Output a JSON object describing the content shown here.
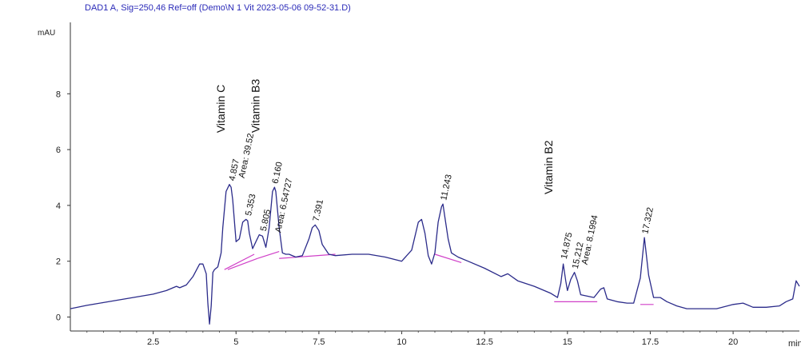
{
  "chart_data": {
    "type": "line",
    "title": "DAD1 A, Sig=250,46 Ref=off (Demo\\N 1 Vit 2023-05-06 09-52-31.D)",
    "ylabel": "mAU",
    "xlabel": "min",
    "xlim": [
      0,
      22
    ],
    "ylim": [
      -0.5,
      10.5
    ],
    "x_ticks": [
      "2.5",
      "5",
      "7.5",
      "10",
      "12.5",
      "15",
      "17.5",
      "20"
    ],
    "y_ticks": [
      "0",
      "2",
      "4",
      "6",
      "8"
    ],
    "colors": {
      "trace": "#2b2b8a",
      "baseline": "#d040c8",
      "header": "#2a2ab8"
    },
    "series": [
      {
        "x": [
          0,
          0.5,
          1,
          1.5,
          2,
          2.5,
          2.9,
          3.1,
          3.2,
          3.3,
          3.5,
          3.7,
          3.9,
          4.0,
          4.1,
          4.15,
          4.2,
          4.25,
          4.3,
          4.35,
          4.45,
          4.55,
          4.6,
          4.7,
          4.8,
          4.85,
          4.9,
          5.0,
          5.1,
          5.2,
          5.3,
          5.35,
          5.4,
          5.5,
          5.6,
          5.7,
          5.8,
          5.9,
          6.0,
          6.1,
          6.16,
          6.2,
          6.3,
          6.4,
          6.5,
          6.6,
          6.8,
          7.0,
          7.2,
          7.3,
          7.39,
          7.5,
          7.6,
          7.8,
          8.0,
          8.5,
          9.0,
          9.5,
          10.0,
          10.3,
          10.5,
          10.6,
          10.7,
          10.8,
          10.9,
          11.0,
          11.1,
          11.2,
          11.243,
          11.3,
          11.4,
          11.5,
          11.7,
          12.0,
          12.5,
          13.0,
          13.2,
          13.5,
          14.0,
          14.3,
          14.5,
          14.7,
          14.8,
          14.875,
          14.95,
          15.0,
          15.1,
          15.212,
          15.3,
          15.4,
          15.6,
          15.8,
          16.0,
          16.1,
          16.2,
          16.5,
          16.8,
          17.0,
          17.2,
          17.322,
          17.45,
          17.6,
          17.8,
          18.0,
          18.3,
          18.6,
          19.0,
          19.5,
          20.0,
          20.3,
          20.6,
          21.0,
          21.4,
          21.6,
          21.8,
          21.9,
          22.0
        ],
        "y": [
          0.3,
          0.42,
          0.52,
          0.62,
          0.72,
          0.82,
          0.95,
          1.05,
          1.1,
          1.05,
          1.15,
          1.45,
          1.9,
          1.9,
          1.55,
          0.5,
          -0.25,
          0.4,
          1.6,
          1.7,
          1.8,
          2.3,
          3.2,
          4.5,
          4.75,
          4.65,
          4.2,
          2.7,
          2.8,
          3.4,
          3.5,
          3.45,
          3.0,
          2.45,
          2.7,
          2.95,
          2.9,
          2.5,
          3.2,
          4.5,
          4.65,
          4.5,
          3.2,
          2.3,
          2.25,
          2.25,
          2.15,
          2.2,
          2.8,
          3.2,
          3.3,
          3.1,
          2.6,
          2.25,
          2.2,
          2.25,
          2.25,
          2.15,
          2.0,
          2.4,
          3.4,
          3.5,
          3.0,
          2.2,
          1.9,
          2.3,
          3.4,
          3.95,
          4.05,
          3.6,
          2.8,
          2.3,
          2.15,
          2.0,
          1.75,
          1.45,
          1.55,
          1.3,
          1.1,
          0.95,
          0.85,
          0.7,
          1.2,
          1.9,
          1.3,
          0.95,
          1.35,
          1.6,
          1.3,
          0.8,
          0.75,
          0.7,
          1.0,
          1.05,
          0.65,
          0.55,
          0.5,
          0.5,
          1.4,
          2.85,
          1.5,
          0.7,
          0.7,
          0.55,
          0.4,
          0.3,
          0.3,
          0.3,
          0.45,
          0.5,
          0.35,
          0.35,
          0.4,
          0.55,
          0.65,
          1.3,
          1.1
        ]
      }
    ],
    "baselines": [
      {
        "x": [
          4.75,
          5.65
        ],
        "y": [
          1.7,
          2.1
        ]
      },
      {
        "x": [
          5.65,
          6.3
        ],
        "y": [
          2.1,
          2.35
        ]
      },
      {
        "x": [
          6.3,
          8.0
        ],
        "y": [
          2.1,
          2.25
        ]
      },
      {
        "x": [
          11.0,
          11.8
        ],
        "y": [
          2.25,
          1.95
        ]
      },
      {
        "x": [
          14.6,
          15.9
        ],
        "y": [
          0.55,
          0.55
        ]
      },
      {
        "x": [
          17.2,
          17.6
        ],
        "y": [
          0.45,
          0.45
        ]
      },
      {
        "x": [
          4.65,
          5.55
        ],
        "y": [
          1.7,
          2.25
        ]
      }
    ],
    "peak_labels": [
      {
        "text": "4.857",
        "x": 4.857,
        "y": 4.75
      },
      {
        "text": "Area: 39.52",
        "x": 5.15,
        "y": 4.85
      },
      {
        "text": "5.353",
        "x": 5.353,
        "y": 3.5
      },
      {
        "text": "5.805",
        "x": 5.805,
        "y": 2.95
      },
      {
        "text": "Area: 6.54727",
        "x": 6.25,
        "y": 2.9
      },
      {
        "text": "6.160",
        "x": 6.16,
        "y": 4.65
      },
      {
        "text": "7.391",
        "x": 7.391,
        "y": 3.3
      },
      {
        "text": "11.243",
        "x": 11.243,
        "y": 4.05
      },
      {
        "text": "14.875",
        "x": 14.875,
        "y": 1.95
      },
      {
        "text": "15.212",
        "x": 15.212,
        "y": 1.6
      },
      {
        "text": "Area: 8.1994",
        "x": 15.5,
        "y": 1.75
      },
      {
        "text": "17.322",
        "x": 17.322,
        "y": 2.85
      }
    ],
    "compound_labels": [
      {
        "text": "Vitamin C",
        "x": 4.65,
        "y": 6.6
      },
      {
        "text": "Vitamin B3",
        "x": 5.7,
        "y": 6.6
      },
      {
        "text": "Vitamin B2",
        "x": 14.55,
        "y": 4.4
      }
    ]
  }
}
